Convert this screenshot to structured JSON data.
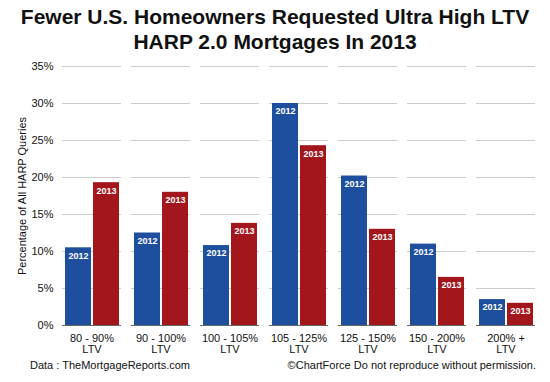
{
  "chart_data": {
    "type": "bar",
    "title": "Fewer U.S. Homeowners Requested Ultra High LTV HARP 2.0 Mortgages In 2013",
    "y_label": "Percentage of All HARP Queries",
    "categories": [
      "80 - 90% LTV",
      "90 - 100% LTV",
      "100 - 105% LTV",
      "105 - 125% LTV",
      "125 - 150% LTV",
      "150 - 200% LTV",
      "200% + LTV"
    ],
    "series": [
      {
        "name": "2012",
        "color": "#1d4f9e",
        "values": [
          10.5,
          12.5,
          10.8,
          30,
          20.2,
          11,
          3.5
        ]
      },
      {
        "name": "2013",
        "color": "#a3161c",
        "values": [
          19.3,
          18,
          13.8,
          24.3,
          13,
          6.5,
          3
        ]
      }
    ],
    "ylim": [
      0,
      35
    ],
    "yticks": [
      {
        "value": 0,
        "label": "0%"
      },
      {
        "value": 5,
        "label": "5%"
      },
      {
        "value": 10,
        "label": "10%"
      },
      {
        "value": 15,
        "label": "15%"
      },
      {
        "value": 20,
        "label": "20%"
      },
      {
        "value": 25,
        "label": "25%"
      },
      {
        "value": 30,
        "label": "30%"
      },
      {
        "value": 35,
        "label": "35%"
      }
    ],
    "grid": true,
    "source": "Data : TheMortgageReports.com",
    "credit": "©ChartForce  Do not reproduce without permission."
  }
}
